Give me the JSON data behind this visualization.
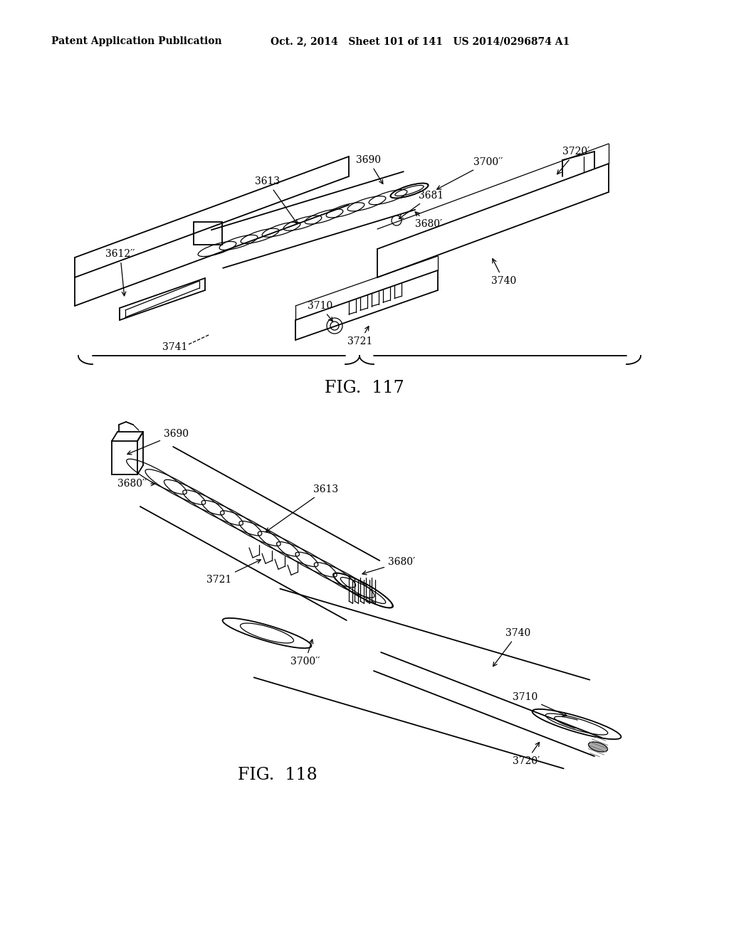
{
  "header_left": "Patent Application Publication",
  "header_right": "Oct. 2, 2014   Sheet 101 of 141   US 2014/0296874 A1",
  "fig117_title": "FIG.  117",
  "fig118_title": "FIG.  118",
  "background": "#ffffff",
  "line_color": "#000000",
  "label_fontsize": 10,
  "header_fontsize": 10,
  "title_fontsize": 17
}
